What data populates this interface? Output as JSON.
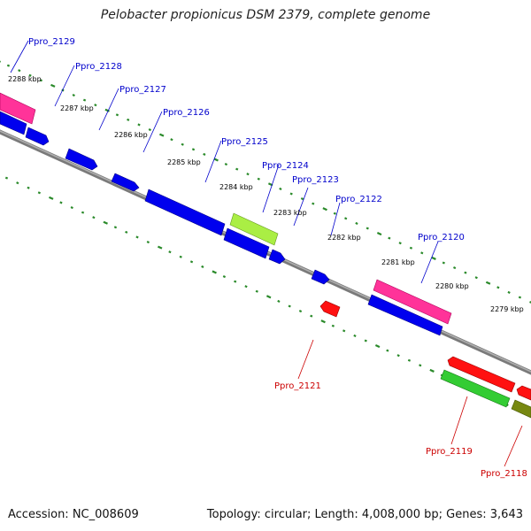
{
  "title": "Pelobacter propionicus DSM 2379, complete genome",
  "footer": {
    "accession": "Accession: NC_008609",
    "topology": "Topology: circular; Length: 4,008,000 bp; Genes: 3,643"
  },
  "colors": {
    "backbone": "#808080",
    "tick": "#2a8a2a",
    "forward_label": "#0000cc",
    "reverse_label": "#cc0000",
    "gene_pink": "#ff3399",
    "gene_blue": "#0000ee",
    "gene_lime": "#aaee44",
    "gene_red": "#ff1111",
    "gene_green": "#33cc33",
    "gene_olive": "#778811"
  },
  "ruler": [
    "2288 kbp",
    "2287 kbp",
    "2286 kbp",
    "2285 kbp",
    "2284 kbp",
    "2283 kbp",
    "2282 kbp",
    "2281 kbp",
    "2280 kbp",
    "2279 kbp"
  ],
  "labels": {
    "forward": [
      "Ppro_2129",
      "Ppro_2128",
      "Ppro_2127",
      "Ppro_2126",
      "Ppro_2125",
      "Ppro_2124",
      "Ppro_2123",
      "Ppro_2122",
      "Ppro_2120"
    ],
    "reverse": [
      "Ppro_2121",
      "Ppro_2119",
      "Ppro_2118"
    ]
  }
}
